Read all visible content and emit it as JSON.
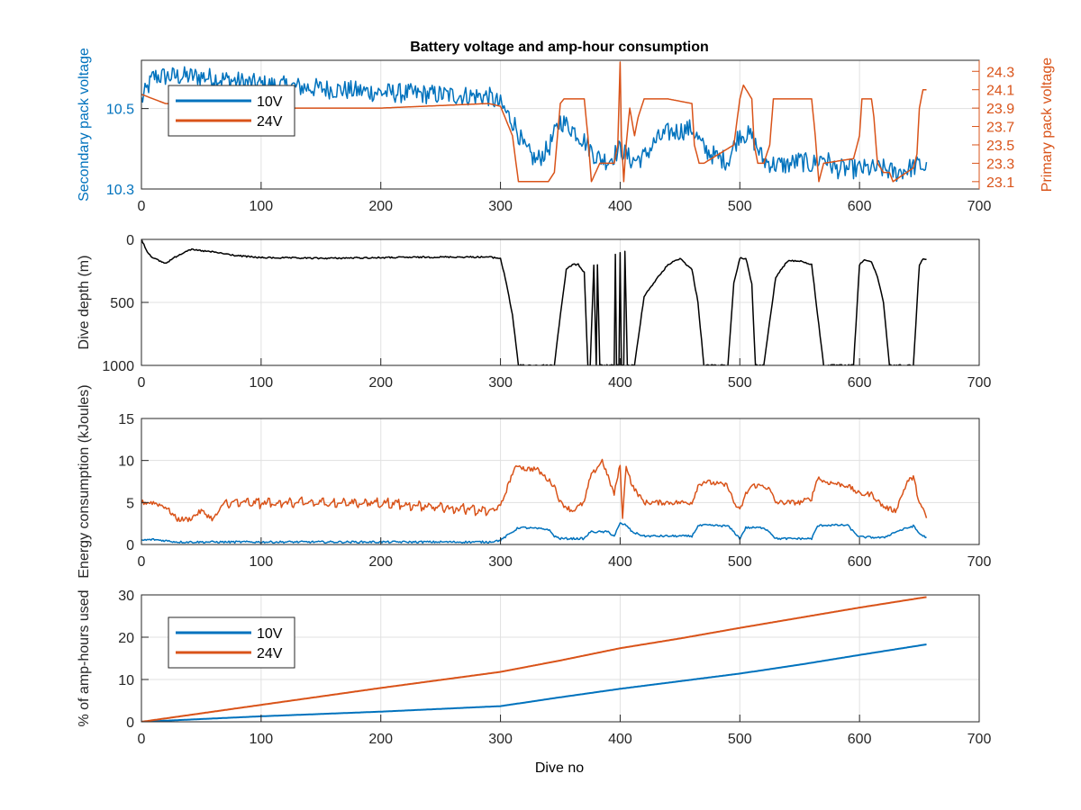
{
  "figure": {
    "title": "Battery voltage and amp-hour consumption",
    "xlabel": "Dive no",
    "colors": {
      "blue": "#0072bd",
      "orange": "#d95319",
      "black": "#000000",
      "axis": "#262626",
      "grid": "#e1e1e1"
    }
  },
  "chart_data": [
    {
      "id": "voltage",
      "type": "line",
      "title": "Battery voltage and amp-hour consumption",
      "xlabel": "",
      "ylabel": "Secondary pack voltage",
      "ylabel_right": "Primary pack voltage",
      "xlim": [
        0,
        700
      ],
      "xticks": [
        0,
        100,
        200,
        300,
        400,
        500,
        600,
        700
      ],
      "ylim": [
        10.3,
        10.62
      ],
      "yticks": [
        10.3,
        10.5
      ],
      "ytick_labels": [
        "10.3",
        "10.5"
      ],
      "ylim_right": [
        23.02,
        24.42
      ],
      "yticks_right": [
        23.1,
        23.3,
        23.5,
        23.7,
        23.9,
        24.1,
        24.3
      ],
      "ytick_labels_right": [
        "23.1",
        "23.3",
        "23.5",
        "23.7",
        "23.9",
        "24.1",
        "24.3"
      ],
      "grid": true,
      "legend": {
        "placement": "top-left",
        "entries": [
          "10V",
          "24V"
        ]
      },
      "series": [
        {
          "name": "10V",
          "axis": "left",
          "color": "#0072bd",
          "noise": 0.025,
          "x": [
            0,
            10,
            50,
            100,
            200,
            290,
            300,
            312,
            320,
            330,
            340,
            350,
            360,
            370,
            380,
            390,
            400,
            410,
            420,
            430,
            440,
            460,
            470,
            480,
            490,
            500,
            510,
            520,
            530,
            540,
            550,
            560,
            570,
            580,
            600,
            620,
            630,
            640,
            650,
            656
          ],
          "y": [
            10.52,
            10.58,
            10.58,
            10.56,
            10.54,
            10.53,
            10.51,
            10.46,
            10.4,
            10.37,
            10.4,
            10.47,
            10.45,
            10.42,
            10.38,
            10.37,
            10.4,
            10.37,
            10.38,
            10.42,
            10.44,
            10.45,
            10.4,
            10.38,
            10.37,
            10.44,
            10.43,
            10.37,
            10.36,
            10.36,
            10.37,
            10.36,
            10.38,
            10.35,
            10.35,
            10.35,
            10.34,
            10.35,
            10.36,
            10.35
          ]
        },
        {
          "name": "24V",
          "axis": "right",
          "color": "#d95319",
          "noise": 0.0,
          "x": [
            0,
            20,
            100,
            200,
            290,
            300,
            310,
            315,
            320,
            340,
            345,
            350,
            353,
            370,
            373,
            376,
            383,
            395,
            398,
            400,
            401,
            403,
            405,
            408,
            412,
            415,
            420,
            440,
            460,
            462,
            466,
            470,
            495,
            500,
            503,
            510,
            512,
            515,
            520,
            525,
            528,
            560,
            563,
            566,
            570,
            595,
            600,
            602,
            610,
            612,
            615,
            620,
            625,
            628,
            645,
            648,
            650,
            653,
            656
          ],
          "y": [
            24.05,
            23.95,
            23.9,
            23.9,
            23.95,
            23.92,
            23.6,
            23.1,
            23.1,
            23.1,
            23.2,
            23.95,
            24.0,
            24.0,
            23.6,
            23.1,
            23.3,
            23.3,
            23.5,
            24.4,
            23.6,
            23.1,
            23.5,
            23.9,
            23.6,
            23.8,
            24.0,
            24.0,
            23.95,
            23.5,
            23.3,
            23.3,
            23.5,
            24.0,
            24.15,
            24.0,
            23.5,
            23.3,
            23.3,
            23.5,
            24.0,
            24.0,
            23.6,
            23.1,
            23.3,
            23.35,
            23.6,
            24.0,
            24.0,
            23.8,
            23.3,
            23.2,
            23.2,
            23.1,
            23.25,
            23.4,
            23.9,
            24.1,
            24.1
          ]
        }
      ]
    },
    {
      "id": "depth",
      "type": "line",
      "ylabel": "Dive depth (m)",
      "xlim": [
        0,
        700
      ],
      "xticks": [
        0,
        100,
        200,
        300,
        400,
        500,
        600,
        700
      ],
      "ylim": [
        0,
        1000
      ],
      "y_reversed": true,
      "yticks": [
        0,
        500,
        1000
      ],
      "ytick_labels": [
        "0",
        "500",
        "1000"
      ],
      "grid": true,
      "series": [
        {
          "name": "",
          "color": "#000000",
          "noise": 6,
          "x": [
            0,
            5,
            10,
            20,
            30,
            40,
            60,
            80,
            100,
            150,
            200,
            250,
            290,
            300,
            305,
            310,
            315,
            320,
            345,
            350,
            355,
            360,
            365,
            370,
            373,
            375,
            378,
            380,
            381,
            383,
            385,
            390,
            395,
            396,
            397,
            399,
            400,
            401,
            403,
            404,
            406,
            410,
            412,
            420,
            430,
            440,
            450,
            460,
            465,
            470,
            490,
            495,
            500,
            505,
            510,
            513,
            520,
            530,
            540,
            550,
            560,
            565,
            570,
            595,
            600,
            605,
            610,
            615,
            620,
            625,
            630,
            645,
            650,
            653,
            656
          ],
          "y": [
            0,
            100,
            150,
            190,
            130,
            80,
            100,
            130,
            145,
            150,
            145,
            140,
            140,
            150,
            350,
            600,
            1000,
            1000,
            1000,
            600,
            240,
            200,
            200,
            260,
            1000,
            1000,
            200,
            1000,
            200,
            1000,
            1000,
            1000,
            1000,
            120,
            1000,
            1000,
            100,
            1000,
            1000,
            100,
            1000,
            1000,
            1000,
            450,
            320,
            200,
            150,
            240,
            500,
            1000,
            1000,
            350,
            150,
            150,
            350,
            1000,
            1000,
            300,
            170,
            170,
            200,
            600,
            1000,
            1000,
            200,
            160,
            180,
            300,
            500,
            1000,
            1000,
            1000,
            200,
            150,
            160
          ]
        }
      ]
    },
    {
      "id": "energy",
      "type": "line",
      "ylabel": "Energy consumption (kJoules)",
      "xlim": [
        0,
        700
      ],
      "xticks": [
        0,
        100,
        200,
        300,
        400,
        500,
        600,
        700
      ],
      "ylim": [
        0,
        15
      ],
      "yticks": [
        0,
        5,
        10,
        15
      ],
      "ytick_labels": [
        "0",
        "5",
        "10",
        "15"
      ],
      "grid": true,
      "series": [
        {
          "name": "24V",
          "color": "#d95319",
          "noise": 0.3,
          "sawtooth": [
            70,
            290,
            0.9
          ],
          "x": [
            0,
            10,
            20,
            30,
            40,
            50,
            60,
            70,
            100,
            150,
            200,
            250,
            290,
            300,
            310,
            315,
            320,
            330,
            345,
            350,
            360,
            370,
            375,
            380,
            385,
            390,
            395,
            400,
            402,
            405,
            410,
            420,
            450,
            460,
            465,
            470,
            490,
            495,
            500,
            505,
            510,
            520,
            525,
            530,
            550,
            560,
            565,
            570,
            590,
            600,
            610,
            620,
            630,
            640,
            645,
            650,
            656
          ],
          "y": [
            5,
            5,
            4.5,
            3,
            3,
            4,
            3,
            5,
            5,
            5,
            5,
            4.5,
            4,
            4.5,
            8.5,
            9.5,
            9,
            9,
            7,
            5,
            4,
            5,
            8,
            9,
            10,
            8,
            6,
            9.5,
            3,
            9.5,
            7,
            5,
            5,
            5,
            7,
            7.5,
            7,
            5,
            4,
            6,
            7,
            7,
            6.5,
            5,
            5,
            5.5,
            8,
            7.5,
            7,
            6,
            6,
            4.5,
            4,
            7.5,
            8,
            5,
            3.2
          ]
        },
        {
          "name": "10V",
          "color": "#0072bd",
          "noise": 0.12,
          "x": [
            0,
            10,
            30,
            50,
            100,
            200,
            290,
            300,
            310,
            315,
            320,
            340,
            345,
            350,
            370,
            375,
            380,
            390,
            395,
            400,
            405,
            410,
            420,
            440,
            460,
            465,
            470,
            490,
            495,
            500,
            505,
            510,
            520,
            525,
            530,
            560,
            565,
            570,
            590,
            595,
            600,
            620,
            630,
            645,
            650,
            656
          ],
          "y": [
            0.5,
            0.6,
            0.3,
            0.3,
            0.3,
            0.3,
            0.3,
            0.5,
            1.5,
            2,
            2,
            1.8,
            1,
            0.7,
            0.7,
            1.5,
            1.5,
            1.5,
            1,
            2.5,
            2.3,
            1.5,
            1,
            1,
            1,
            2.2,
            2.3,
            2.2,
            1.5,
            0.7,
            2,
            2,
            2,
            1.5,
            0.7,
            0.7,
            2.2,
            2.3,
            2.3,
            1.5,
            0.9,
            0.8,
            1.5,
            2.2,
            1.3,
            0.8
          ]
        }
      ]
    },
    {
      "id": "amphours",
      "type": "line",
      "xlabel": "Dive no",
      "ylabel": "% of amp-hours used",
      "xlim": [
        0,
        700
      ],
      "xticks": [
        0,
        100,
        200,
        300,
        400,
        500,
        600,
        700
      ],
      "ylim": [
        0,
        30
      ],
      "yticks": [
        0,
        10,
        20,
        30
      ],
      "ytick_labels": [
        "0",
        "10",
        "20",
        "30"
      ],
      "grid": true,
      "legend": {
        "placement": "top-left",
        "entries": [
          "10V",
          "24V"
        ]
      },
      "series": [
        {
          "name": "10V",
          "color": "#0072bd",
          "noise": 0.0,
          "x": [
            0,
            100,
            200,
            300,
            350,
            400,
            450,
            500,
            550,
            600,
            656
          ],
          "y": [
            0,
            1.3,
            2.4,
            3.7,
            5.8,
            7.8,
            9.6,
            11.4,
            13.5,
            15.8,
            18.3
          ]
        },
        {
          "name": "24V",
          "color": "#d95319",
          "noise": 0.0,
          "x": [
            0,
            100,
            200,
            300,
            350,
            400,
            450,
            500,
            550,
            600,
            656
          ],
          "y": [
            0,
            4,
            8,
            11.8,
            14.5,
            17.4,
            19.7,
            22.2,
            24.6,
            27,
            29.5
          ]
        }
      ]
    }
  ]
}
